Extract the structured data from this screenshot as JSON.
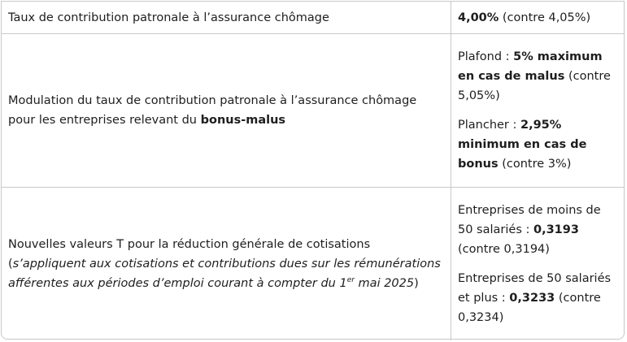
{
  "rows": [
    {
      "label": "Taux de contribution patronale à l’assurance chômage",
      "value_bold": "4,00%",
      "value_rest": " (contre 4,05%)"
    },
    {
      "label_start": "Modulation du taux de contribution patronale à l’assurance chômage pour les entreprises relevant du ",
      "label_bold": "bonus-malus",
      "values": [
        {
          "prefix": "Plafond : ",
          "bold": "5% maximum en cas de malus",
          "suffix": " (contre 5,05%)"
        },
        {
          "prefix": "Plancher : ",
          "bold": "2,95% minimum en cas de bonus",
          "suffix": " (contre 3%)"
        }
      ]
    },
    {
      "label": "Nouvelles valeurs T pour la réduction générale de cotisations",
      "note_open": "(",
      "note_italic": "s’appliquent aux cotisations et contributions dues sur les rémunérations afférentes aux périodes d’emploi courant à compter du 1",
      "note_sup": "er",
      "note_italic_end": " mai 2025",
      "note_close": ")",
      "values": [
        {
          "prefix": "Entreprises de moins de 50 salariés : ",
          "bold": "0,3193",
          "suffix": " (contre 0,3194)"
        },
        {
          "prefix": "Entreprises de 50 salariés et plus : ",
          "bold": "0,3233",
          "suffix": " (contre 0,3234)"
        }
      ]
    }
  ]
}
